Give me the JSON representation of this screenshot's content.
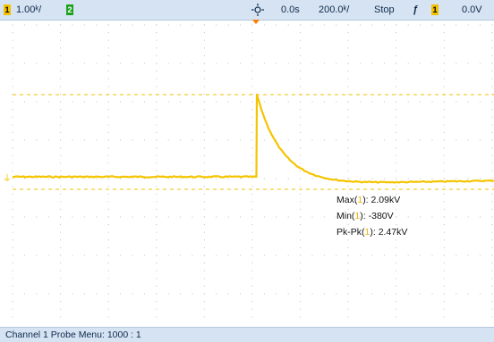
{
  "topbar": {
    "ch1_badge": "1",
    "ch1_scale": "1.00ᵏ/",
    "ch2_badge": "2",
    "time_offset": "0.0s",
    "timebase": "200.0ᵏ/",
    "run_state": "Stop",
    "trigger_slope": "ƒ",
    "trigger_source_badge": "1",
    "trigger_level": "0.0V"
  },
  "measurements": {
    "max": {
      "label_pre": "Max(",
      "channel": "1",
      "label_post": "): ",
      "value": "2.09kV"
    },
    "min": {
      "label_pre": "Min(",
      "channel": "1",
      "label_post": "): ",
      "value": "-380V"
    },
    "pkpk": {
      "label_pre": "Pk-Pk(",
      "channel": "1",
      "label_post": "): ",
      "value": "2.47kV"
    }
  },
  "bottombar": {
    "text": "Channel 1  Probe Menu: 1000 : 1"
  },
  "colors": {
    "trace": "#f5c400",
    "toolbar_bg": "#d6e3f3",
    "trigger_marker": "#ff7a00",
    "ch2_badge": "#1ea11e"
  }
}
